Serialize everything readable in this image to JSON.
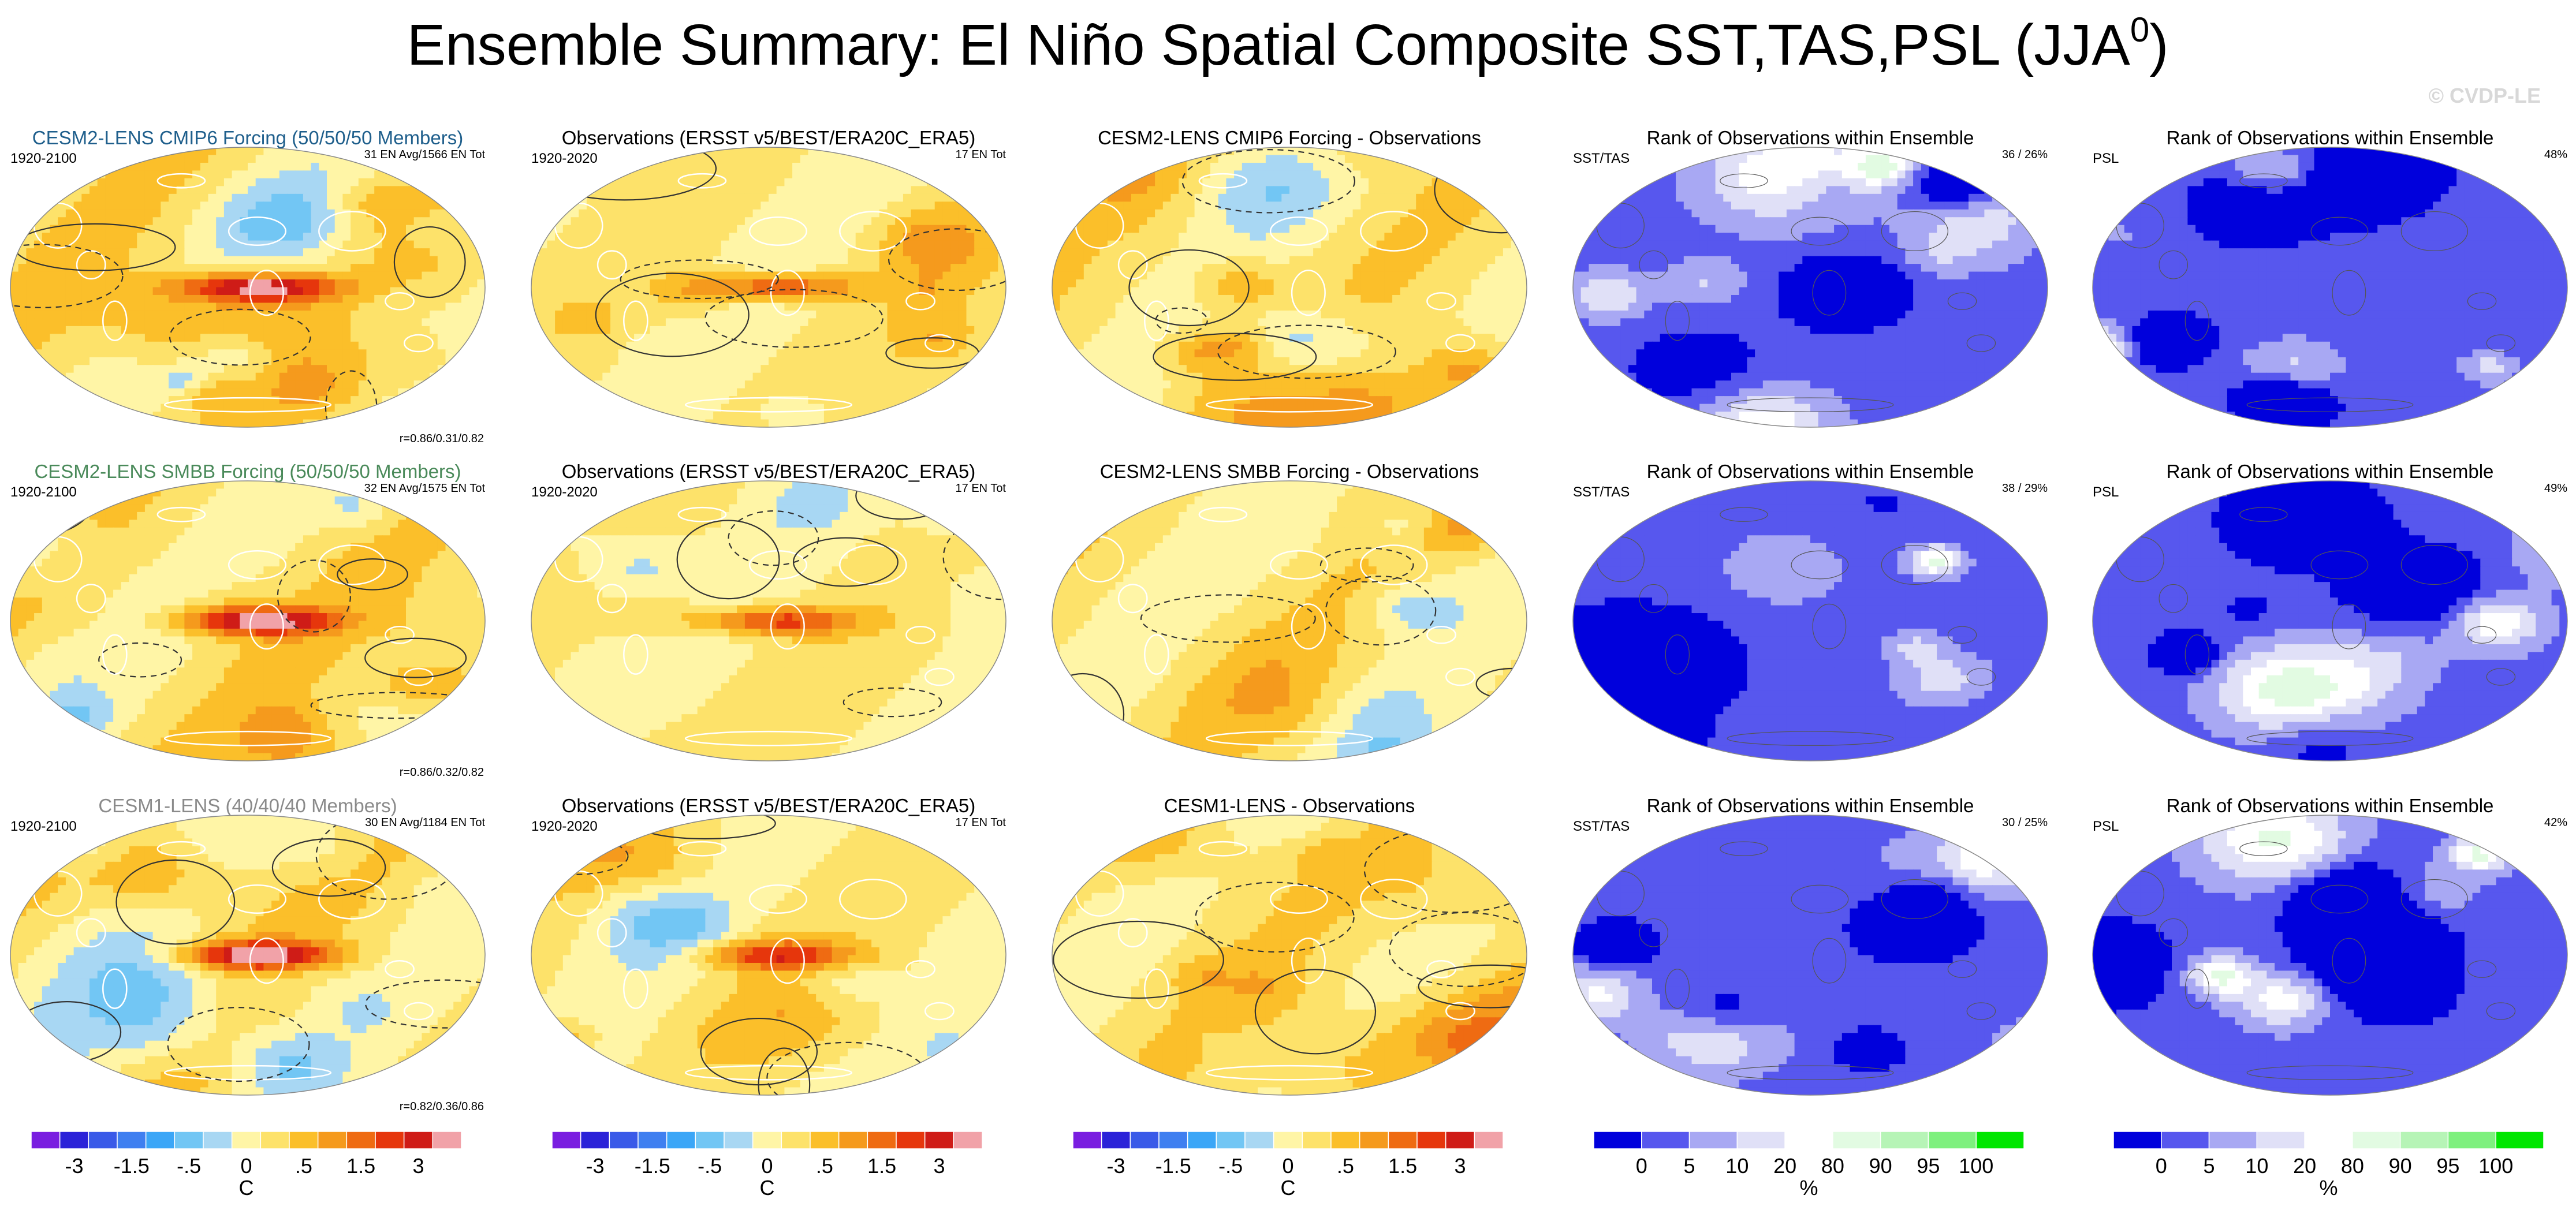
{
  "figure": {
    "title_main": "Ensemble Summary: El Niño Spatial Composite SST,TAS,PSL (JJA",
    "title_sup": "0",
    "title_close": ")",
    "watermark": "© CVDP-LE"
  },
  "palette": {
    "diverging": [
      "#7a1ee0",
      "#2b22d8",
      "#3a5ae8",
      "#3f7ff0",
      "#3ba6f7",
      "#72c6f4",
      "#a8d7f3",
      "#fff5a6",
      "#fde26a",
      "#fbbf2a",
      "#f59a1d",
      "#ef6b12",
      "#e6360c",
      "#cf1c17",
      "#f1a2a8"
    ],
    "rank": [
      "#0000dc",
      "#5757ee",
      "#a8a8f3",
      "#e0e0f7",
      "#ffffff",
      "#e2fbe2",
      "#b6f4b6",
      "#7ef07e",
      "#00e600"
    ],
    "contour": "#333333",
    "coast_dark": "#555555",
    "coast_white": "#ffffff"
  },
  "chart_data": [
    {
      "type": "heatmap",
      "variable": "SST/TAS/PSL composite",
      "title": "CESM2-LENS CMIP6 Forcing (50/50/50 Members)",
      "title_color": "#1f5f8c",
      "left": "1920-2100",
      "right": "31 EN Avg/1566 EN Tot",
      "corr": "r=0.86/0.31/0.82",
      "units": "C",
      "seed": 11,
      "amp": 1.0
    },
    {
      "type": "heatmap",
      "variable": "SST/TAS/PSL composite",
      "title": "Observations (ERSST v5/BEST/ERA20C_ERA5)",
      "title_color": "#000000",
      "left": "1920-2020",
      "right": "17 EN Tot",
      "corr": "",
      "units": "C",
      "seed": 23,
      "amp": 0.7
    },
    {
      "type": "heatmap",
      "variable": "model minus observations",
      "title": "CESM2-LENS CMIP6 Forcing - Observations",
      "title_color": "#000000",
      "left": "",
      "right": "",
      "corr": "",
      "units": "C",
      "seed": 37,
      "amp": 0.55
    },
    {
      "type": "heatmap",
      "variable": "rank SST/TAS",
      "title": "Rank of Observations within Ensemble",
      "title_color": "#000000",
      "left": "SST/TAS",
      "right": "36 /  26%",
      "corr": "",
      "units": "%",
      "seed": 41,
      "amp": 1.0
    },
    {
      "type": "heatmap",
      "variable": "rank PSL",
      "title": "Rank of Observations within Ensemble",
      "title_color": "#000000",
      "left": "PSL",
      "right": "48%",
      "corr": "",
      "units": "%",
      "seed": 53,
      "amp": 1.0
    },
    {
      "type": "heatmap",
      "variable": "SST/TAS/PSL composite",
      "title": "CESM2-LENS SMBB Forcing (50/50/50 Members)",
      "title_color": "#4a8a5a",
      "left": "1920-2100",
      "right": "32 EN Avg/1575 EN Tot",
      "corr": "r=0.86/0.32/0.82",
      "units": "C",
      "seed": 12,
      "amp": 1.0
    },
    {
      "type": "heatmap",
      "variable": "SST/TAS/PSL composite",
      "title": "Observations (ERSST v5/BEST/ERA20C_ERA5)",
      "title_color": "#000000",
      "left": "1920-2020",
      "right": "17 EN Tot",
      "corr": "",
      "units": "C",
      "seed": 24,
      "amp": 0.7
    },
    {
      "type": "heatmap",
      "variable": "model minus observations",
      "title": "CESM2-LENS SMBB Forcing - Observations",
      "title_color": "#000000",
      "left": "",
      "right": "",
      "corr": "",
      "units": "C",
      "seed": 38,
      "amp": 0.55
    },
    {
      "type": "heatmap",
      "variable": "rank SST/TAS",
      "title": "Rank of Observations within Ensemble",
      "title_color": "#000000",
      "left": "SST/TAS",
      "right": "38 /  29%",
      "corr": "",
      "units": "%",
      "seed": 42,
      "amp": 1.0
    },
    {
      "type": "heatmap",
      "variable": "rank PSL",
      "title": "Rank of Observations within Ensemble",
      "title_color": "#000000",
      "left": "PSL",
      "right": "49%",
      "corr": "",
      "units": "%",
      "seed": 54,
      "amp": 1.0
    },
    {
      "type": "heatmap",
      "variable": "SST/TAS/PSL composite",
      "title": "CESM1-LENS (40/40/40 Members)",
      "title_color": "#8a8a8a",
      "left": "1920-2100",
      "right": "30 EN Avg/1184 EN Tot",
      "corr": "r=0.82/0.36/0.86",
      "units": "C",
      "seed": 13,
      "amp": 1.0
    },
    {
      "type": "heatmap",
      "variable": "SST/TAS/PSL composite",
      "title": "Observations (ERSST v5/BEST/ERA20C_ERA5)",
      "title_color": "#000000",
      "left": "1920-2020",
      "right": "17 EN Tot",
      "corr": "",
      "units": "C",
      "seed": 25,
      "amp": 0.7
    },
    {
      "type": "heatmap",
      "variable": "model minus observations",
      "title": "CESM1-LENS - Observations",
      "title_color": "#000000",
      "left": "",
      "right": "",
      "corr": "",
      "units": "C",
      "seed": 39,
      "amp": 0.55
    },
    {
      "type": "heatmap",
      "variable": "rank SST/TAS",
      "title": "Rank of Observations within Ensemble",
      "title_color": "#000000",
      "left": "SST/TAS",
      "right": "30 /  25%",
      "corr": "",
      "units": "%",
      "seed": 43,
      "amp": 1.0
    },
    {
      "type": "heatmap",
      "variable": "rank PSL",
      "title": "Rank of Observations within Ensemble",
      "title_color": "#000000",
      "left": "PSL",
      "right": "42%",
      "corr": "",
      "units": "%",
      "seed": 55,
      "amp": 1.0
    }
  ],
  "colorbars": [
    {
      "kind": "diverging",
      "labels": [
        "-3",
        "-1.5",
        "-.5",
        "0",
        ".5",
        "1.5",
        "3"
      ],
      "unit": "C"
    },
    {
      "kind": "diverging",
      "labels": [
        "-3",
        "-1.5",
        "-.5",
        "0",
        ".5",
        "1.5",
        "3"
      ],
      "unit": "C"
    },
    {
      "kind": "diverging",
      "labels": [
        "-3",
        "-1.5",
        "-.5",
        "0",
        ".5",
        "1.5",
        "3"
      ],
      "unit": "C"
    },
    {
      "kind": "rank",
      "labels": [
        "0",
        "5",
        "10",
        "20",
        "80",
        "90",
        "95",
        "100"
      ],
      "unit": "%"
    },
    {
      "kind": "rank",
      "labels": [
        "0",
        "5",
        "10",
        "20",
        "80",
        "90",
        "95",
        "100"
      ],
      "unit": "%"
    }
  ]
}
